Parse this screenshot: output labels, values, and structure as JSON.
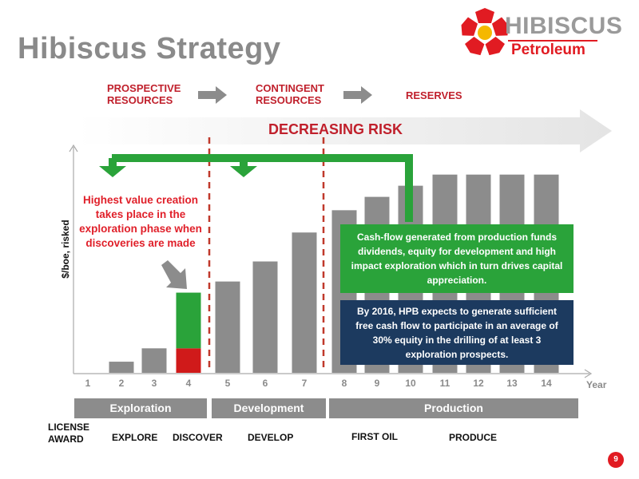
{
  "header": {
    "title": "Hibiscus Strategy",
    "logo_text_1": "Hibiscus",
    "logo_text_2": "Petroleum",
    "logo_colors": [
      "#e11b22",
      "#f5b800"
    ]
  },
  "stages": [
    "PROSPECTIVE\nRESOURCES",
    "CONTINGENT\nRESOURCES",
    "RESERVES"
  ],
  "risk_arrow_label": "DECREASING RISK",
  "annotations": {
    "exploration_note": "Highest value creation takes place in the exploration phase when discoveries are made",
    "cashflow_note": "Cash-flow generated from production funds dividends, equity for development and high impact exploration which in turn drives capital appreciation.",
    "plan_note": "By 2016, HPB expects to generate sufficient free cash flow to participate in an average of 30% equity in the drilling of at least 3 exploration prospects."
  },
  "phases": [
    "Exploration",
    "Development",
    "Production"
  ],
  "milestones": [
    "LICENSE\nAWARD",
    "EXPLORE",
    "DISCOVER",
    "DEVELOP",
    "FIRST OIL",
    "PRODUCE"
  ],
  "page_number": "9",
  "colors": {
    "bar": "#8c8c8c",
    "green": "#2aa33a",
    "red": "#d01a1a",
    "navy": "#1c3a5f",
    "accent": "#c0202c"
  },
  "chart_data": {
    "type": "bar",
    "categories": [
      "1",
      "2",
      "3",
      "4",
      "5",
      "6",
      "7",
      "8",
      "9",
      "10",
      "11",
      "12",
      "13",
      "14"
    ],
    "values": [
      0,
      5,
      11,
      36,
      41,
      50,
      63,
      73,
      79,
      84,
      89,
      89,
      89,
      89
    ],
    "stacked_highlight": {
      "category": "4",
      "red": 11,
      "green": 25
    },
    "xlabel": "Year",
    "ylabel": "$/boe, risked",
    "ylim": [
      0,
      100
    ],
    "grid": false,
    "legend": "none"
  }
}
